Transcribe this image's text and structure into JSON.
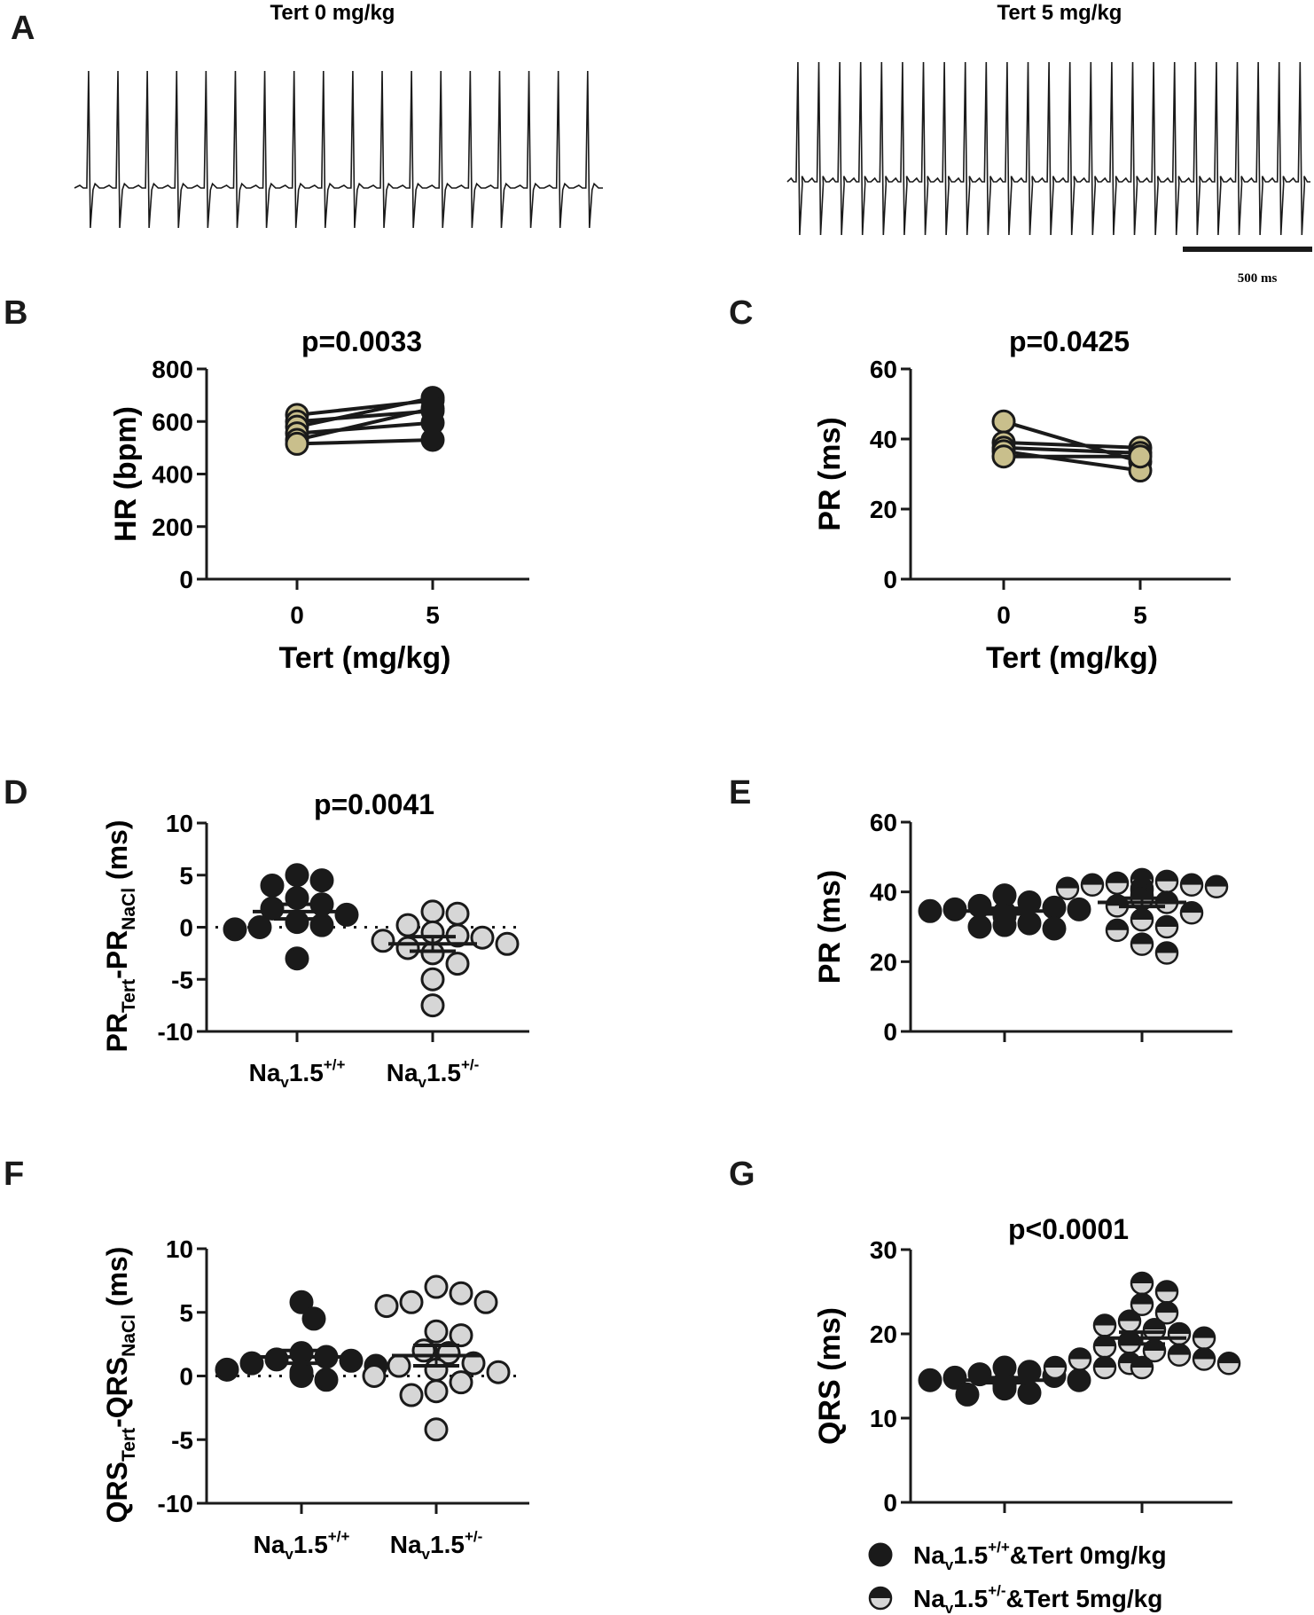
{
  "panel_letters": [
    "A",
    "B",
    "C",
    "D",
    "E",
    "F",
    "G"
  ],
  "panelA": {
    "trace_left_title": "Tert 0 mg/kg",
    "trace_right_title": "Tert 5 mg/kg",
    "scalebar_label": "500 ms",
    "beats_left": 18,
    "beats_right": 25
  },
  "colors": {
    "black_marker": "#1a1a1a",
    "khaki_marker": "#c9bf8c",
    "grey_marker": "#d6d6d6",
    "axis": "#1a1a1a"
  },
  "chart_data": [
    {
      "panel": "B",
      "type": "line",
      "title": "p=0.0033",
      "xlabel": "Tert (mg/kg)",
      "ylabel": "HR (bpm)",
      "categories": [
        "0",
        "5"
      ],
      "ylim": [
        0,
        800
      ],
      "yticks": [
        0,
        200,
        400,
        600,
        800
      ],
      "paired": [
        [
          625,
          680
        ],
        [
          600,
          640
        ],
        [
          580,
          690
        ],
        [
          555,
          595
        ],
        [
          530,
          650
        ],
        [
          515,
          530
        ]
      ],
      "marker_colors": [
        "khaki",
        "black"
      ]
    },
    {
      "panel": "C",
      "type": "line",
      "title": "p=0.0425",
      "xlabel": "Tert (mg/kg)",
      "ylabel": "PR (ms)",
      "categories": [
        "0",
        "5"
      ],
      "ylim": [
        0,
        60
      ],
      "yticks": [
        0,
        20,
        40,
        60
      ],
      "paired": [
        [
          45,
          33.5
        ],
        [
          39,
          37.5
        ],
        [
          37.5,
          36
        ],
        [
          36.5,
          31
        ],
        [
          35,
          35
        ]
      ],
      "marker_colors": [
        "khaki",
        "khaki"
      ]
    },
    {
      "panel": "D",
      "type": "scatter",
      "title": "p=0.0041",
      "ylabel": "PRTert-PRNaCl (ms)",
      "ylim": [
        -10,
        10
      ],
      "yticks": [
        -10,
        -5,
        0,
        5,
        10
      ],
      "zero_line": true,
      "groups": [
        {
          "label": "Nav1.5+/+",
          "values": [
            5.0,
            4.5,
            4.0,
            2.8,
            2.2,
            1.8,
            1.2,
            0.5,
            0.2,
            0.0,
            -0.2,
            -3.0
          ],
          "mean": 1.5,
          "sem": 0.7,
          "marker": "black"
        },
        {
          "label": "Nav1.5+/-",
          "values": [
            1.5,
            1.3,
            0.2,
            -0.5,
            -0.8,
            -1.0,
            -1.3,
            -1.6,
            -2.0,
            -2.5,
            -3.5,
            -5.0,
            -7.5
          ],
          "mean": -1.6,
          "sem": 0.7,
          "marker": "grey"
        }
      ]
    },
    {
      "panel": "E",
      "type": "scatter",
      "ylabel": "PR (ms)",
      "ylim": [
        0,
        60
      ],
      "yticks": [
        0,
        20,
        40,
        60
      ],
      "groups": [
        {
          "label": "Nav1.5+/+&Tert 0mg/kg",
          "values": [
            39,
            37,
            36,
            35.5,
            35,
            35,
            34.5,
            34,
            33,
            31,
            30.5,
            30,
            29.5
          ],
          "mean": 34.5,
          "sem": 0.8,
          "marker": "black"
        },
        {
          "label": "Nav1.5+/-&Tert 5mg/kg",
          "values": [
            43.5,
            43,
            42.5,
            42,
            42,
            41.5,
            41,
            41,
            40.5,
            39,
            38,
            38,
            37,
            36,
            34,
            32,
            30,
            29,
            25,
            22.5
          ],
          "mean": 37,
          "sem": 1.2,
          "marker": "half"
        }
      ]
    },
    {
      "panel": "F",
      "type": "scatter",
      "ylabel": "QRSTert-QRSNaCl (ms)",
      "ylim": [
        -10,
        10
      ],
      "yticks": [
        -10,
        -5,
        0,
        5,
        10
      ],
      "zero_line": true,
      "groups": [
        {
          "label": "Nav1.5+/+",
          "values": [
            5.8,
            4.5,
            1.8,
            1.5,
            1.3,
            1.2,
            1.0,
            0.8,
            0.5,
            0.3,
            0.1,
            0.0,
            -0.3
          ],
          "mean": 1.5,
          "sem": 0.5,
          "marker": "black"
        },
        {
          "label": "Nav1.5+/-",
          "values": [
            7.0,
            6.5,
            5.8,
            5.8,
            5.5,
            3.5,
            3.2,
            2.0,
            1.8,
            1.0,
            0.8,
            0.5,
            0.3,
            0.0,
            -0.5,
            -1.2,
            -1.5,
            -4.2
          ],
          "mean": 1.6,
          "sem": 0.8,
          "marker": "grey"
        }
      ]
    },
    {
      "panel": "G",
      "type": "scatter",
      "title": "p<0.0001",
      "ylabel": "QRS (ms)",
      "ylim": [
        0,
        30
      ],
      "yticks": [
        0,
        10,
        20,
        30
      ],
      "groups": [
        {
          "label": "Nav1.5+/+&Tert 0mg/kg",
          "values": [
            16,
            15.5,
            15.2,
            15,
            14.8,
            14.5,
            14.5,
            14.2,
            14,
            13.8,
            13.5,
            13,
            12.8
          ],
          "mean": 14.5,
          "sem": 0.3,
          "marker": "black"
        },
        {
          "label": "Nav1.5+/-&Tert 5mg/kg",
          "values": [
            26,
            25,
            23.5,
            22.5,
            21.5,
            21,
            20.5,
            20,
            19.5,
            19,
            18.5,
            18,
            17.5,
            17,
            17,
            16.5,
            16.5,
            16,
            16,
            16
          ],
          "mean": 19.5,
          "sem": 0.7,
          "marker": "half"
        }
      ]
    }
  ],
  "legend": {
    "position": "bottom-right",
    "items": [
      {
        "base": "Na",
        "sub": "v",
        "main": "1.5",
        "sup": "+/+",
        "tail": "&Tert 0mg/kg",
        "marker": "black"
      },
      {
        "base": "Na",
        "sub": "v",
        "main": "1.5",
        "sup": "+/-",
        "tail": "&Tert 5mg/kg",
        "marker": "half"
      }
    ]
  },
  "labels": {
    "nav": {
      "base": "Na",
      "sub": "v",
      "main": "1.5"
    },
    "genotype_wt_sup": "+/+",
    "genotype_het_sup": "+/-",
    "ylabel_D": {
      "a": "PR",
      "a_sub": "Tert",
      "dash": "-",
      "b": "PR",
      "b_sub": "NaCl",
      "unit": " (ms)"
    },
    "ylabel_F": {
      "a": "QRS",
      "a_sub": "Tert",
      "dash": "-",
      "b": "QRS",
      "b_sub": "NaCl",
      "unit": " (ms)"
    }
  }
}
